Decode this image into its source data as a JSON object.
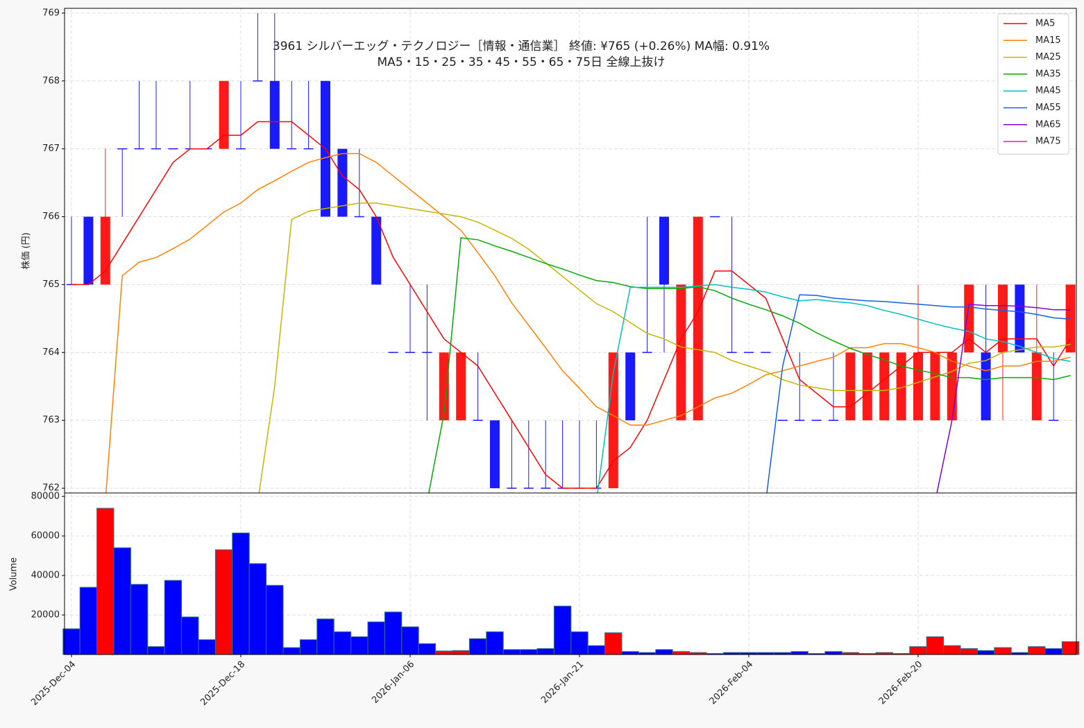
{
  "chart_data": {
    "type": "candlestick",
    "title": "3961  シルバーエッグ・テクノロジー［情報・通信業］ 終値: ¥765 (+0.26%)  MA幅: 0.91%",
    "subtitle": "MA5・15・25・35・45・55・65・75日 全線上抜け",
    "y_label": "株価 (円)",
    "categories": [
      "2025-Dec-04",
      null,
      null,
      null,
      null,
      null,
      null,
      null,
      null,
      null,
      "2025-Dec-18",
      null,
      null,
      null,
      null,
      null,
      null,
      null,
      null,
      null,
      "2026-Jan-06",
      null,
      null,
      null,
      null,
      null,
      null,
      null,
      null,
      null,
      "2026-Jan-21",
      null,
      null,
      null,
      null,
      null,
      null,
      null,
      null,
      null,
      "2026-Feb-04",
      null,
      null,
      null,
      null,
      null,
      null,
      null,
      null,
      null,
      "2026-Feb-20",
      null,
      null,
      null,
      null,
      null,
      null,
      null,
      null,
      null
    ],
    "ohlc": [
      [
        765,
        766,
        765,
        765
      ],
      [
        766,
        766,
        765,
        765
      ],
      [
        765,
        767,
        765,
        766
      ],
      [
        767,
        767,
        766,
        767
      ],
      [
        767,
        768,
        767,
        767
      ],
      [
        767,
        768,
        767,
        767
      ],
      [
        767,
        767,
        767,
        767
      ],
      [
        767,
        768,
        767,
        767
      ],
      [
        767,
        767,
        767,
        767
      ],
      [
        767,
        768,
        767,
        768
      ],
      [
        767,
        768,
        767,
        767
      ],
      [
        768,
        769,
        768,
        768
      ],
      [
        768,
        769,
        767,
        767
      ],
      [
        767,
        768,
        767,
        767
      ],
      [
        767,
        768,
        767,
        767
      ],
      [
        768,
        768,
        766,
        766
      ],
      [
        767,
        767,
        766,
        766
      ],
      [
        766,
        767,
        766,
        766
      ],
      [
        766,
        766,
        765,
        765
      ],
      [
        764,
        764,
        764,
        764
      ],
      [
        764,
        765,
        764,
        764
      ],
      [
        764,
        765,
        763,
        764
      ],
      [
        763,
        764,
        763,
        764
      ],
      [
        763,
        764,
        763,
        764
      ],
      [
        763,
        764,
        763,
        763
      ],
      [
        763,
        763,
        762,
        762
      ],
      [
        762,
        763,
        762,
        762
      ],
      [
        762,
        763,
        762,
        762
      ],
      [
        762,
        763,
        762,
        762
      ],
      [
        762,
        763,
        762,
        762
      ],
      [
        762,
        763,
        762,
        762
      ],
      [
        762,
        763,
        762,
        762
      ],
      [
        762,
        764,
        762,
        764
      ],
      [
        764,
        764,
        763,
        763
      ],
      [
        764,
        766,
        764,
        764
      ],
      [
        766,
        766,
        764,
        765
      ],
      [
        763,
        765,
        763,
        765
      ],
      [
        763,
        766,
        763,
        766
      ],
      [
        766,
        766,
        766,
        766
      ],
      [
        764,
        766,
        764,
        764
      ],
      [
        764,
        764,
        764,
        764
      ],
      [
        764,
        764,
        764,
        764
      ],
      [
        763,
        763,
        763,
        763
      ],
      [
        763,
        764,
        763,
        763
      ],
      [
        763,
        763,
        763,
        763
      ],
      [
        763,
        764,
        763,
        763
      ],
      [
        763,
        764,
        763,
        764
      ],
      [
        763,
        764,
        763,
        764
      ],
      [
        763,
        764,
        763,
        764
      ],
      [
        763,
        764,
        763,
        764
      ],
      [
        763,
        765,
        763,
        764
      ],
      [
        763,
        764,
        763,
        764
      ],
      [
        763,
        764,
        763,
        764
      ],
      [
        764,
        765,
        764,
        765
      ],
      [
        764,
        765,
        763,
        763
      ],
      [
        764,
        765,
        763,
        765
      ],
      [
        765,
        765,
        764,
        764
      ],
      [
        763,
        765,
        763,
        764
      ],
      [
        763,
        764,
        763,
        763
      ],
      [
        764,
        765,
        764,
        765
      ]
    ],
    "up_color": "#ff1a1a",
    "down_color": "#1a1aff",
    "ylim": [
      761.93,
      769.07
    ],
    "yticks": [
      762,
      763,
      764,
      765,
      766,
      767,
      768,
      769
    ],
    "grid": true,
    "legend": "upper right",
    "series": [
      {
        "name": "MA5",
        "color": "#ff0000",
        "values": [
          765,
          765,
          765.2,
          765.6,
          766,
          766.4,
          766.8,
          767,
          767,
          767.2,
          767.2,
          767.4,
          767.4,
          767.4,
          767.2,
          767,
          766.6,
          766.4,
          766,
          765.4,
          765,
          764.6,
          764.2,
          764,
          763.8,
          763.4,
          763,
          762.6,
          762.2,
          762,
          762,
          762,
          762.4,
          762.6,
          763,
          763.6,
          764.2,
          764.6,
          765.2,
          765.2,
          765,
          764.8,
          764.2,
          763.6,
          763.4,
          763.2,
          763.2,
          763.4,
          763.6,
          763.8,
          764,
          764,
          764,
          764.2,
          764,
          764.2,
          764.2,
          764.2,
          763.8,
          764.2
        ]
      },
      {
        "name": "MA15",
        "color": "#ff8000",
        "values": [
          null,
          null,
          761.8,
          765.13,
          765.33,
          765.4,
          765.53,
          765.67,
          765.87,
          766.07,
          766.2,
          766.4,
          766.53,
          766.67,
          766.8,
          766.87,
          766.93,
          766.93,
          766.8,
          766.6,
          766.4,
          766.2,
          766,
          765.8,
          765.47,
          765.13,
          764.73,
          764.4,
          764.07,
          763.73,
          763.47,
          763.2,
          763.07,
          762.93,
          762.93,
          763,
          763.07,
          763.2,
          763.33,
          763.4,
          763.53,
          763.67,
          763.73,
          763.8,
          763.87,
          763.93,
          764.07,
          764.07,
          764.13,
          764.13,
          764.07,
          764,
          763.87,
          763.8,
          763.73,
          763.8,
          763.8,
          763.87,
          763.87,
          763.93
        ]
      },
      {
        "name": "MA25",
        "color": "#c8b400",
        "values": [
          null,
          null,
          null,
          null,
          null,
          null,
          null,
          null,
          null,
          null,
          null,
          761.8,
          763.5,
          765.96,
          766.08,
          766.12,
          766.16,
          766.2,
          766.2,
          766.16,
          766.12,
          766.08,
          766.04,
          766,
          765.92,
          765.8,
          765.68,
          765.52,
          765.32,
          765.12,
          764.92,
          764.72,
          764.6,
          764.44,
          764.28,
          764.2,
          764.08,
          764.04,
          764,
          763.88,
          763.8,
          763.72,
          763.6,
          763.52,
          763.48,
          763.44,
          763.44,
          763.44,
          763.44,
          763.48,
          763.56,
          763.64,
          763.72,
          763.84,
          763.88,
          764,
          764.04,
          764.08,
          764.08,
          764.12
        ]
      },
      {
        "name": "MA35",
        "color": "#00aa00",
        "values": [
          null,
          null,
          null,
          null,
          null,
          null,
          null,
          null,
          null,
          null,
          null,
          null,
          null,
          null,
          null,
          null,
          null,
          null,
          null,
          null,
          null,
          761.8,
          763.1,
          765.69,
          765.66,
          765.57,
          765.49,
          765.4,
          765.31,
          765.23,
          765.14,
          765.06,
          765.03,
          764.97,
          764.94,
          764.94,
          764.94,
          764.97,
          764.91,
          764.8,
          764.71,
          764.63,
          764.54,
          764.43,
          764.29,
          764.17,
          764.06,
          763.97,
          763.89,
          763.8,
          763.74,
          763.69,
          763.63,
          763.63,
          763.6,
          763.63,
          763.63,
          763.63,
          763.6,
          763.66
        ]
      },
      {
        "name": "MA45",
        "color": "#00bfbf",
        "values": [
          null,
          null,
          null,
          null,
          null,
          null,
          null,
          null,
          null,
          null,
          null,
          null,
          null,
          null,
          null,
          null,
          null,
          null,
          null,
          null,
          null,
          null,
          null,
          null,
          null,
          null,
          null,
          null,
          null,
          null,
          null,
          761.8,
          763.7,
          764.96,
          764.96,
          764.96,
          764.96,
          764.98,
          765,
          764.96,
          764.93,
          764.89,
          764.82,
          764.76,
          764.78,
          764.75,
          764.73,
          764.69,
          764.62,
          764.56,
          764.49,
          764.42,
          764.36,
          764.31,
          764.2,
          764.16,
          764.09,
          764,
          763.91,
          763.87
        ]
      },
      {
        "name": "MA55",
        "color": "#1060e0",
        "values": [
          null,
          null,
          null,
          null,
          null,
          null,
          null,
          null,
          null,
          null,
          null,
          null,
          null,
          null,
          null,
          null,
          null,
          null,
          null,
          null,
          null,
          null,
          null,
          null,
          null,
          null,
          null,
          null,
          null,
          null,
          null,
          null,
          null,
          null,
          null,
          null,
          null,
          null,
          null,
          null,
          null,
          761.8,
          763.8,
          764.85,
          764.84,
          764.8,
          764.78,
          764.76,
          764.75,
          764.73,
          764.71,
          764.69,
          764.67,
          764.67,
          764.64,
          764.62,
          764.6,
          764.56,
          764.51,
          764.49
        ]
      },
      {
        "name": "MA65",
        "color": "#8000e0",
        "values": [
          null,
          null,
          null,
          null,
          null,
          null,
          null,
          null,
          null,
          null,
          null,
          null,
          null,
          null,
          null,
          null,
          null,
          null,
          null,
          null,
          null,
          null,
          null,
          null,
          null,
          null,
          null,
          null,
          null,
          null,
          null,
          null,
          null,
          null,
          null,
          null,
          null,
          null,
          null,
          null,
          null,
          null,
          null,
          null,
          null,
          null,
          null,
          null,
          null,
          null,
          null,
          761.8,
          763,
          764.71,
          764.69,
          764.69,
          764.68,
          764.66,
          764.63,
          764.63
        ]
      },
      {
        "name": "MA75",
        "color": "#ff00ff",
        "values": [
          null,
          null,
          null,
          null,
          null,
          null,
          null,
          null,
          null,
          null,
          null,
          null,
          null,
          null,
          null,
          null,
          null,
          null,
          null,
          null,
          null,
          null,
          null,
          null,
          null,
          null,
          null,
          null,
          null,
          null,
          null,
          null,
          null,
          null,
          null,
          null,
          null,
          null,
          null,
          null,
          null,
          null,
          null,
          null,
          null,
          null,
          null,
          null,
          null,
          null,
          null,
          null,
          null,
          null,
          null,
          null,
          null,
          null,
          null,
          null
        ]
      }
    ],
    "volume": {
      "label": "Volume",
      "up_color": "#ff0000",
      "down_color": "#0000ff",
      "values": [
        13000,
        34000,
        74000,
        54000,
        35500,
        4000,
        37500,
        19000,
        7500,
        53000,
        61500,
        46000,
        35000,
        3500,
        7500,
        18000,
        11500,
        9000,
        16500,
        21500,
        14000,
        5500,
        1800,
        2000,
        8000,
        11500,
        2500,
        2500,
        3000,
        24500,
        11500,
        4500,
        11000,
        1500,
        1000,
        2500,
        1500,
        1000,
        500,
        1000,
        1000,
        1000,
        1000,
        1500,
        500,
        1500,
        1000,
        500,
        1000,
        500,
        4000,
        9000,
        4500,
        3000,
        2000,
        3500,
        1000,
        4000,
        3000,
        6500
      ],
      "ylim": [
        0,
        81750
      ],
      "yticks": [
        20000,
        40000,
        60000,
        80000
      ]
    }
  }
}
